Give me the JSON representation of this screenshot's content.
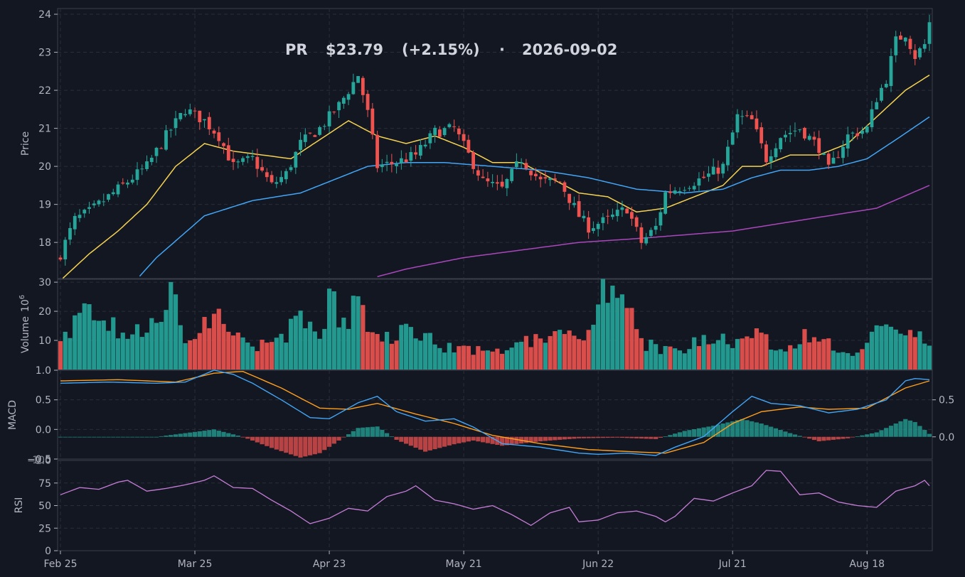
{
  "header": {
    "symbol": "PR",
    "price": "$23.79",
    "change": "(+2.15%)",
    "separator": "·",
    "date": "2026-09-02"
  },
  "panels": {
    "price": {
      "ylabel": "Price",
      "yticks": [
        18,
        19,
        20,
        21,
        22,
        23,
        24
      ],
      "ylim": [
        17.05,
        24.15
      ]
    },
    "volume": {
      "ylabel": "Volume",
      "exponent_label": "10",
      "exponent": "6",
      "yticks": [
        10,
        20,
        30
      ],
      "ylim": [
        0,
        31
      ]
    },
    "macd": {
      "ylabel": "MACD",
      "yticks": [
        "1.0",
        "0.5",
        "0.0",
        "−0.5"
      ],
      "yticks_right": [
        "0.5",
        "0.0"
      ],
      "bottom_tick_overlap": "−1.0",
      "ylim": [
        -0.5,
        1.0
      ],
      "right_ylim": [
        -0.3,
        0.9
      ]
    },
    "rsi": {
      "ylabel": "RSI",
      "yticks": [
        0,
        25,
        50,
        75,
        100
      ],
      "ylim": [
        0,
        100
      ]
    }
  },
  "xaxis": {
    "ticks": [
      {
        "label": "Feb 25",
        "index": 0
      },
      {
        "label": "Mar 25",
        "index": 28
      },
      {
        "label": "Apr 23",
        "index": 56
      },
      {
        "label": "May 21",
        "index": 84
      },
      {
        "label": "Jun 22",
        "index": 112
      },
      {
        "label": "Jul 21",
        "index": 140
      },
      {
        "label": "Aug 18",
        "index": 168
      }
    ]
  },
  "colors": {
    "background": "#131722",
    "grid": "#2a2e39",
    "text": "#b2b5be",
    "up": "#26a69a",
    "down": "#ef5350",
    "ma_fast": "#f5d250",
    "ma_mid": "#42a5f5",
    "ma_slow": "#ab47bc",
    "macd": "#42a5f5",
    "signal": "#ff9f1c",
    "rsi": "#c77dd8"
  },
  "chart_data": {
    "type": "candlestick",
    "date_range": [
      "2026-02-25",
      "2026-09-02"
    ],
    "candle_count": 182,
    "price_path": [
      [
        0,
        17.7
      ],
      [
        3,
        18.6
      ],
      [
        6,
        18.8
      ],
      [
        10,
        19.2
      ],
      [
        14,
        19.6
      ],
      [
        18,
        20.0
      ],
      [
        22,
        20.8
      ],
      [
        26,
        21.5
      ],
      [
        30,
        21.2
      ],
      [
        33,
        20.8
      ],
      [
        36,
        20.0
      ],
      [
        40,
        20.2
      ],
      [
        44,
        19.5
      ],
      [
        47,
        19.8
      ],
      [
        50,
        20.6
      ],
      [
        54,
        21.0
      ],
      [
        58,
        21.6
      ],
      [
        62,
        22.4
      ],
      [
        64,
        21.4
      ],
      [
        66,
        20.0
      ],
      [
        70,
        20.1
      ],
      [
        74,
        20.3
      ],
      [
        78,
        20.9
      ],
      [
        82,
        21.0
      ],
      [
        85,
        20.3
      ],
      [
        88,
        19.6
      ],
      [
        92,
        19.4
      ],
      [
        96,
        20.2
      ],
      [
        100,
        19.6
      ],
      [
        104,
        19.6
      ],
      [
        108,
        18.7
      ],
      [
        110,
        18.4
      ],
      [
        114,
        18.6
      ],
      [
        118,
        18.9
      ],
      [
        121,
        18.0
      ],
      [
        124,
        18.4
      ],
      [
        126,
        19.3
      ],
      [
        130,
        19.5
      ],
      [
        134,
        19.7
      ],
      [
        138,
        20.0
      ],
      [
        141,
        21.3
      ],
      [
        144,
        21.2
      ],
      [
        147,
        20.2
      ],
      [
        150,
        20.8
      ],
      [
        154,
        21.0
      ],
      [
        158,
        20.5
      ],
      [
        160,
        19.9
      ],
      [
        164,
        20.8
      ],
      [
        168,
        21.0
      ],
      [
        170,
        21.8
      ],
      [
        172,
        22.3
      ],
      [
        174,
        23.3
      ],
      [
        176,
        23.5
      ],
      [
        178,
        22.9
      ],
      [
        180,
        23.2
      ],
      [
        181,
        23.79
      ]
    ],
    "ma_fast_path": [
      [
        0,
        17.0
      ],
      [
        6,
        17.7
      ],
      [
        12,
        18.3
      ],
      [
        18,
        19.0
      ],
      [
        24,
        20.0
      ],
      [
        30,
        20.6
      ],
      [
        36,
        20.4
      ],
      [
        42,
        20.3
      ],
      [
        48,
        20.2
      ],
      [
        54,
        20.7
      ],
      [
        60,
        21.2
      ],
      [
        66,
        20.8
      ],
      [
        72,
        20.6
      ],
      [
        78,
        20.8
      ],
      [
        84,
        20.5
      ],
      [
        90,
        20.1
      ],
      [
        96,
        20.1
      ],
      [
        102,
        19.7
      ],
      [
        108,
        19.3
      ],
      [
        114,
        19.2
      ],
      [
        120,
        18.8
      ],
      [
        126,
        18.9
      ],
      [
        132,
        19.2
      ],
      [
        138,
        19.5
      ],
      [
        142,
        20.0
      ],
      [
        146,
        20.0
      ],
      [
        152,
        20.3
      ],
      [
        158,
        20.3
      ],
      [
        164,
        20.6
      ],
      [
        170,
        21.3
      ],
      [
        176,
        22.0
      ],
      [
        181,
        22.4
      ]
    ],
    "ma_mid_path": [
      [
        0,
        15.2
      ],
      [
        10,
        16.2
      ],
      [
        20,
        17.6
      ],
      [
        30,
        18.7
      ],
      [
        40,
        19.1
      ],
      [
        50,
        19.3
      ],
      [
        58,
        19.7
      ],
      [
        64,
        20.0
      ],
      [
        72,
        20.1
      ],
      [
        80,
        20.1
      ],
      [
        90,
        20.0
      ],
      [
        100,
        19.9
      ],
      [
        110,
        19.7
      ],
      [
        120,
        19.4
      ],
      [
        130,
        19.3
      ],
      [
        138,
        19.4
      ],
      [
        144,
        19.7
      ],
      [
        150,
        19.9
      ],
      [
        156,
        19.9
      ],
      [
        162,
        20.0
      ],
      [
        168,
        20.2
      ],
      [
        174,
        20.7
      ],
      [
        181,
        21.3
      ]
    ],
    "ma_slow_path": [
      [
        66,
        17.1
      ],
      [
        72,
        17.3
      ],
      [
        84,
        17.6
      ],
      [
        96,
        17.8
      ],
      [
        108,
        18.0
      ],
      [
        120,
        18.1
      ],
      [
        130,
        18.2
      ],
      [
        140,
        18.3
      ],
      [
        150,
        18.5
      ],
      [
        160,
        18.7
      ],
      [
        170,
        18.9
      ],
      [
        181,
        19.5
      ]
    ],
    "volume_path": [
      [
        0,
        10
      ],
      [
        7,
        23
      ],
      [
        14,
        12
      ],
      [
        20,
        15
      ],
      [
        24,
        30
      ],
      [
        26,
        11
      ],
      [
        32,
        21
      ],
      [
        38,
        9
      ],
      [
        44,
        8
      ],
      [
        50,
        17
      ],
      [
        54,
        11
      ],
      [
        56,
        23
      ],
      [
        60,
        17
      ],
      [
        62,
        26
      ],
      [
        66,
        10
      ],
      [
        72,
        14
      ],
      [
        80,
        8
      ],
      [
        90,
        6
      ],
      [
        100,
        12
      ],
      [
        110,
        11
      ],
      [
        112,
        26
      ],
      [
        118,
        22
      ],
      [
        122,
        9
      ],
      [
        130,
        5
      ],
      [
        134,
        13
      ],
      [
        140,
        9
      ],
      [
        144,
        12
      ],
      [
        150,
        8
      ],
      [
        158,
        13
      ],
      [
        162,
        8
      ],
      [
        166,
        6
      ],
      [
        170,
        13
      ],
      [
        176,
        12
      ],
      [
        181,
        10
      ]
    ],
    "macd_path": [
      [
        0,
        0.78
      ],
      [
        10,
        0.8
      ],
      [
        20,
        0.78
      ],
      [
        26,
        0.8
      ],
      [
        32,
        1.0
      ],
      [
        36,
        0.93
      ],
      [
        40,
        0.78
      ],
      [
        46,
        0.5
      ],
      [
        52,
        0.2
      ],
      [
        56,
        0.18
      ],
      [
        62,
        0.45
      ],
      [
        66,
        0.56
      ],
      [
        70,
        0.3
      ],
      [
        76,
        0.14
      ],
      [
        82,
        0.18
      ],
      [
        86,
        0.04
      ],
      [
        92,
        -0.24
      ],
      [
        100,
        -0.3
      ],
      [
        108,
        -0.4
      ],
      [
        112,
        -0.42
      ],
      [
        118,
        -0.4
      ],
      [
        124,
        -0.44
      ],
      [
        128,
        -0.3
      ],
      [
        134,
        -0.12
      ],
      [
        140,
        0.3
      ],
      [
        144,
        0.56
      ],
      [
        148,
        0.44
      ],
      [
        154,
        0.4
      ],
      [
        160,
        0.28
      ],
      [
        166,
        0.34
      ],
      [
        172,
        0.5
      ],
      [
        176,
        0.82
      ],
      [
        178,
        0.86
      ],
      [
        181,
        0.84
      ]
    ],
    "signal_path": [
      [
        0,
        0.82
      ],
      [
        12,
        0.84
      ],
      [
        24,
        0.8
      ],
      [
        32,
        0.95
      ],
      [
        38,
        0.98
      ],
      [
        46,
        0.7
      ],
      [
        54,
        0.36
      ],
      [
        60,
        0.34
      ],
      [
        66,
        0.44
      ],
      [
        74,
        0.26
      ],
      [
        82,
        0.1
      ],
      [
        90,
        -0.1
      ],
      [
        100,
        -0.24
      ],
      [
        110,
        -0.34
      ],
      [
        120,
        -0.38
      ],
      [
        126,
        -0.4
      ],
      [
        134,
        -0.22
      ],
      [
        140,
        0.1
      ],
      [
        146,
        0.3
      ],
      [
        154,
        0.38
      ],
      [
        160,
        0.34
      ],
      [
        168,
        0.36
      ],
      [
        176,
        0.7
      ],
      [
        181,
        0.82
      ]
    ],
    "hist_path": [
      [
        0,
        0.0
      ],
      [
        20,
        0.0
      ],
      [
        26,
        0.05
      ],
      [
        32,
        0.1
      ],
      [
        38,
        0.0
      ],
      [
        44,
        -0.15
      ],
      [
        50,
        -0.28
      ],
      [
        54,
        -0.22
      ],
      [
        58,
        -0.05
      ],
      [
        62,
        0.12
      ],
      [
        66,
        0.14
      ],
      [
        70,
        -0.04
      ],
      [
        76,
        -0.2
      ],
      [
        82,
        -0.1
      ],
      [
        86,
        -0.05
      ],
      [
        92,
        -0.12
      ],
      [
        100,
        -0.06
      ],
      [
        108,
        -0.02
      ],
      [
        116,
        -0.01
      ],
      [
        124,
        -0.03
      ],
      [
        130,
        0.08
      ],
      [
        136,
        0.15
      ],
      [
        142,
        0.24
      ],
      [
        146,
        0.18
      ],
      [
        152,
        0.05
      ],
      [
        158,
        -0.06
      ],
      [
        164,
        -0.02
      ],
      [
        170,
        0.06
      ],
      [
        176,
        0.24
      ],
      [
        178,
        0.2
      ],
      [
        181,
        0.04
      ]
    ],
    "rsi_path": [
      [
        0,
        62
      ],
      [
        4,
        70
      ],
      [
        8,
        68
      ],
      [
        12,
        76
      ],
      [
        14,
        78
      ],
      [
        18,
        66
      ],
      [
        22,
        69
      ],
      [
        26,
        73
      ],
      [
        30,
        78
      ],
      [
        32,
        83
      ],
      [
        36,
        70
      ],
      [
        40,
        69
      ],
      [
        44,
        56
      ],
      [
        48,
        44
      ],
      [
        52,
        30
      ],
      [
        56,
        36
      ],
      [
        60,
        47
      ],
      [
        64,
        44
      ],
      [
        68,
        60
      ],
      [
        72,
        66
      ],
      [
        74,
        72
      ],
      [
        78,
        56
      ],
      [
        82,
        52
      ],
      [
        86,
        46
      ],
      [
        90,
        50
      ],
      [
        94,
        40
      ],
      [
        98,
        28
      ],
      [
        102,
        42
      ],
      [
        106,
        48
      ],
      [
        108,
        32
      ],
      [
        112,
        34
      ],
      [
        116,
        42
      ],
      [
        120,
        44
      ],
      [
        124,
        38
      ],
      [
        126,
        32
      ],
      [
        128,
        38
      ],
      [
        132,
        58
      ],
      [
        136,
        55
      ],
      [
        140,
        64
      ],
      [
        144,
        72
      ],
      [
        147,
        89
      ],
      [
        150,
        88
      ],
      [
        154,
        62
      ],
      [
        158,
        64
      ],
      [
        162,
        54
      ],
      [
        166,
        50
      ],
      [
        170,
        48
      ],
      [
        174,
        66
      ],
      [
        178,
        72
      ],
      [
        180,
        78
      ],
      [
        181,
        72
      ]
    ]
  }
}
